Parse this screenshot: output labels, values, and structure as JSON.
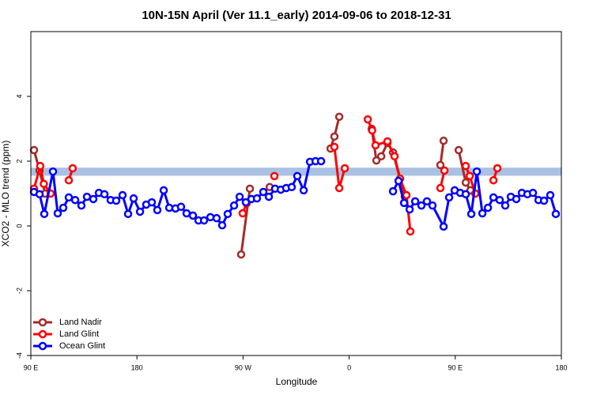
{
  "chart_data": {
    "type": "line",
    "title": "10N-15N April (Ver 11.1_early)   2014-09-06 to 2018-12-31",
    "xlabel": "Longitude",
    "ylabel": "XCO2 - MLO trend (ppm)",
    "xlim": [
      90,
      540
    ],
    "ylim": [
      -4,
      6
    ],
    "xticks": [
      {
        "value": 90,
        "label": "90 E"
      },
      180,
      {
        "value": 270,
        "label": "90 W"
      },
      {
        "value": 360,
        "label": "0"
      },
      {
        "value": 450,
        "label": "90 E"
      },
      {
        "value": 540,
        "label": "180"
      }
    ],
    "yticks": [
      -4,
      -2,
      0,
      2,
      4
    ],
    "band": [
      1.55,
      1.8
    ],
    "band_color": "#a9c1e3",
    "legend": "lower left",
    "series": [
      {
        "name": "Land Nadir",
        "color": "#a52a2a",
        "x": [
          92.7,
          97.4,
          102.1,
          null,
          268.4,
          275.8,
          null,
          292.6,
          null,
          344.2,
          347.5,
          351.6,
          null,
          379.1,
          383.1,
          387.2,
          392.5,
          397.2,
          407.2,
          null,
          437.4,
          440.1,
          null,
          452.9,
          458.9,
          462.9
        ],
        "values": [
          2.34,
          1.71,
          1.0,
          null,
          -0.88,
          1.15,
          null,
          1.2,
          null,
          2.39,
          2.76,
          3.37,
          null,
          3.0,
          2.02,
          2.15,
          2.56,
          2.27,
          0.9,
          null,
          1.88,
          2.63,
          null,
          2.34,
          1.34,
          1.1
        ]
      },
      {
        "name": "Land Glint",
        "color": "#ff0000",
        "x": [
          92.7,
          98.0,
          101.0,
          106.8,
          null,
          122.2,
          125.5,
          null,
          269.7,
          273.0,
          null,
          296.6,
          null,
          347.5,
          351.6,
          356.3,
          null,
          375.8,
          379.5,
          382.4,
          392.5,
          398.5,
          403.2,
          408.6,
          411.9,
          null,
          437.4,
          440.8,
          null,
          458.9,
          462.3,
          467.0,
          null,
          482.4,
          485.7
        ],
        "values": [
          1.15,
          1.85,
          1.3,
          1.0,
          null,
          1.41,
          1.78,
          null,
          0.39,
          0.7,
          null,
          1.54,
          null,
          2.44,
          1.17,
          1.78,
          null,
          3.29,
          2.95,
          2.49,
          2.61,
          2.15,
          1.46,
          0.95,
          -0.17,
          null,
          1.17,
          1.71,
          null,
          1.85,
          1.54,
          1.0,
          null,
          1.41,
          1.78
        ]
      },
      {
        "name": "Ocean Glint",
        "color": "#0000ff",
        "x": [
          92.7,
          97.4,
          101.4,
          108.8,
          112.8,
          117.5,
          122.2,
          127.6,
          132.9,
          137.6,
          143.0,
          147.7,
          152.4,
          157.7,
          162.4,
          167.8,
          172.5,
          177.2,
          182.6,
          187.9,
          192.6,
          197.3,
          202.7,
          207.4,
          212.7,
          217.4,
          222.1,
          227.5,
          232.2,
          236.9,
          242.3,
          247.6,
          252.3,
          257.0,
          262.4,
          267.1,
          272.4,
          277.1,
          281.8,
          287.2,
          291.9,
          297.2,
          302.0,
          306.6,
          311.3,
          316.0,
          321.4,
          326.8,
          331.5,
          336.2,
          null,
          397.2,
          401.9,
          406.6,
          411.3,
          416.0,
          421.3,
          426.0,
          430.7,
          440.1,
          444.8,
          449.5,
          454.2,
          458.9,
          463.6,
          468.3,
          473.0,
          477.7,
          482.4,
          487.7,
          492.4,
          497.1,
          501.8,
          506.5,
          511.2,
          515.9,
          520.6,
          525.3,
          530.6,
          535.3
        ],
        "values": [
          1.05,
          0.98,
          0.37,
          1.68,
          0.39,
          0.56,
          0.88,
          0.8,
          0.63,
          0.9,
          0.83,
          1.02,
          0.98,
          0.8,
          0.78,
          0.95,
          0.37,
          0.85,
          0.44,
          0.66,
          0.73,
          0.49,
          1.1,
          0.56,
          0.54,
          0.59,
          0.39,
          0.32,
          0.17,
          0.17,
          0.27,
          0.24,
          0.02,
          0.37,
          0.63,
          0.9,
          0.73,
          0.83,
          0.85,
          1.05,
          0.9,
          1.15,
          1.12,
          1.17,
          1.2,
          1.54,
          1.1,
          1.98,
          2.0,
          2.0,
          null,
          1.07,
          1.39,
          0.71,
          0.51,
          0.76,
          0.63,
          0.76,
          0.63,
          -0.02,
          0.88,
          1.1,
          1.02,
          0.98,
          0.37,
          1.68,
          0.39,
          0.56,
          0.88,
          0.8,
          0.63,
          0.9,
          0.83,
          1.02,
          0.98,
          1.02,
          0.8,
          0.78,
          0.95,
          0.37
        ]
      }
    ]
  }
}
